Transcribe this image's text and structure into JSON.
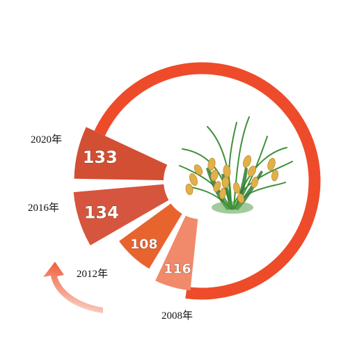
{
  "chart_data": {
    "type": "radial-bar",
    "title": "",
    "categories": [
      "2008年",
      "2012年",
      "2016年",
      "2020年"
    ],
    "values": [
      116,
      108,
      134,
      133
    ],
    "colors": {
      "ring": "#ee4b2b",
      "bars": [
        "#f08a6a",
        "#e8642f",
        "#d6553e",
        "#d24f33"
      ],
      "arrow": "#ef5a36"
    },
    "decoration": "rice-plant-illustration-icon"
  }
}
